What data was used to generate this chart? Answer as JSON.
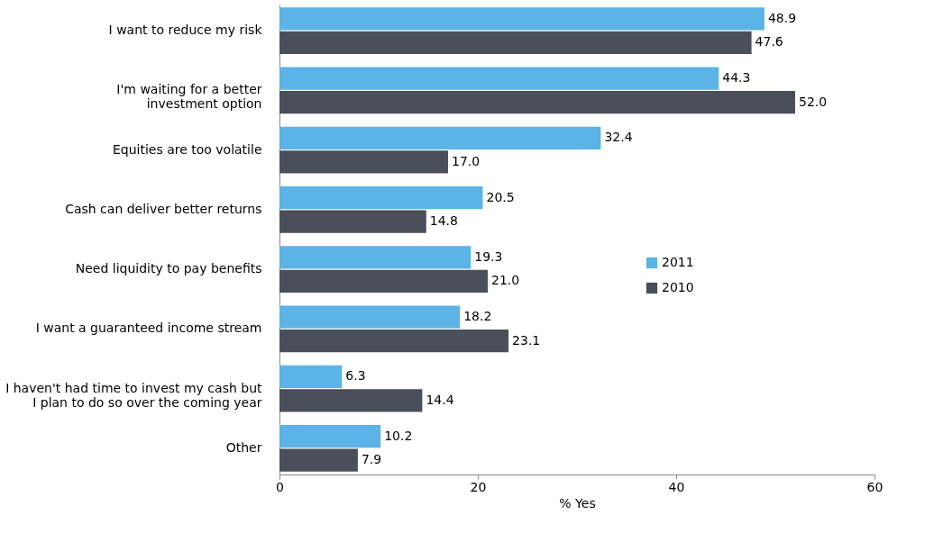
{
  "chart_data": {
    "type": "bar",
    "orientation": "horizontal",
    "xlabel": "% Yes",
    "categories": [
      "I want to reduce my risk",
      "I'm waiting for a better\ninvestment option",
      "Equities are too volatile",
      "Cash can deliver better returns",
      "Need liquidity to pay benefits",
      "I want a guaranteed income stream",
      "I haven't had time to invest my cash but\nI plan to do so over the coming year",
      "Other"
    ],
    "series": [
      {
        "name": "2011",
        "color": "#5bb4e5",
        "values": [
          48.9,
          44.3,
          32.4,
          20.5,
          19.3,
          18.2,
          6.3,
          10.2
        ],
        "value_labels": [
          "48.9",
          "44.3",
          "32.4",
          "20.5",
          "19.3",
          "18.2",
          "6.3",
          "10.2"
        ]
      },
      {
        "name": "2010",
        "color": "#4a4f59",
        "values": [
          47.6,
          52.0,
          17.0,
          14.8,
          21.0,
          23.1,
          14.4,
          7.9
        ],
        "value_labels": [
          "47.6",
          "52.0",
          "17.0",
          "14.8",
          "21.0",
          "23.1",
          "14.4",
          "7.9"
        ]
      }
    ],
    "xlim": [
      0,
      60
    ],
    "xticks": [
      0,
      20,
      40,
      60
    ],
    "grid": false,
    "legend": "bottom right"
  }
}
